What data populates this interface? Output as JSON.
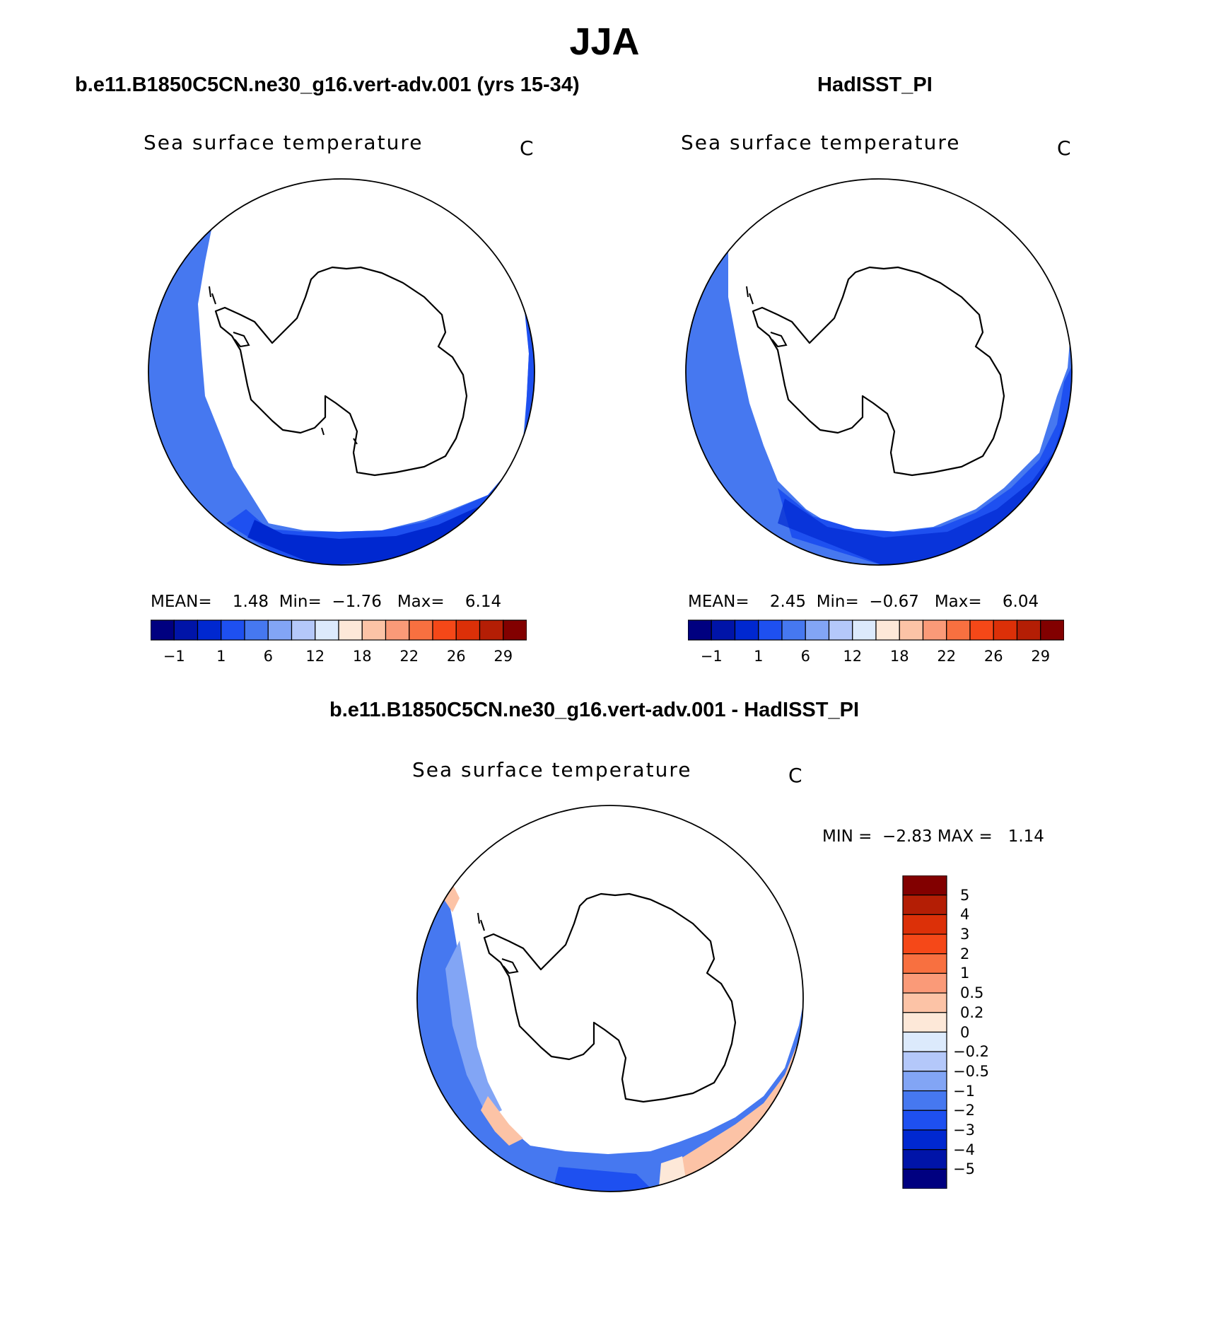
{
  "title": "JJA",
  "panels": {
    "left": {
      "title": "b.e11.B1850C5CN.ne30_g16.vert-adv.001 (yrs 15-34)",
      "variable": "Sea surface temperature",
      "units": "C",
      "stats": {
        "mean_label": "MEAN=",
        "mean": "1.48",
        "min_label": "Min=",
        "min": "−1.76",
        "max_label": "Max=",
        "max": "6.14"
      }
    },
    "right": {
      "title": "HadISST_PI",
      "variable": "Sea surface temperature",
      "units": "C",
      "stats": {
        "mean_label": "MEAN=",
        "mean": "2.45",
        "min_label": "Min=",
        "min": "−0.67",
        "max_label": "Max=",
        "max": "6.04"
      }
    },
    "diff": {
      "title": "b.e11.B1850C5CN.ne30_g16.vert-adv.001 - HadISST_PI",
      "variable": "Sea surface temperature",
      "units": "C",
      "stats": {
        "min_label": "MIN =",
        "min": "−2.83",
        "max_label": "MAX =",
        "max": "1.14"
      }
    }
  },
  "colorbar_sst": {
    "colors": [
      "#000080",
      "#0014a8",
      "#0028d0",
      "#1e50f0",
      "#4678f0",
      "#82a5f5",
      "#b4c8fa",
      "#dceafc",
      "#fde8d8",
      "#fcc3a6",
      "#fa9a78",
      "#f87040",
      "#f54818",
      "#dc3008",
      "#b41e05",
      "#820000"
    ],
    "tick_labels": [
      "−1",
      "1",
      "6",
      "12",
      "18",
      "22",
      "26",
      "29"
    ]
  },
  "colorbar_diff": {
    "colors": [
      "#000080",
      "#0014a8",
      "#0028d0",
      "#1e50f0",
      "#4678f0",
      "#82a5f5",
      "#b4c8fa",
      "#dceafc",
      "#fde8d8",
      "#fcc3a6",
      "#fa9a78",
      "#f87040",
      "#f54818",
      "#dc3008",
      "#b41e05",
      "#820000"
    ],
    "tick_labels": [
      "5",
      "4",
      "3",
      "2",
      "1",
      "0.5",
      "0.2",
      "0",
      "−0.2",
      "−0.5",
      "−1",
      "−2",
      "−3",
      "−4",
      "−5"
    ]
  }
}
